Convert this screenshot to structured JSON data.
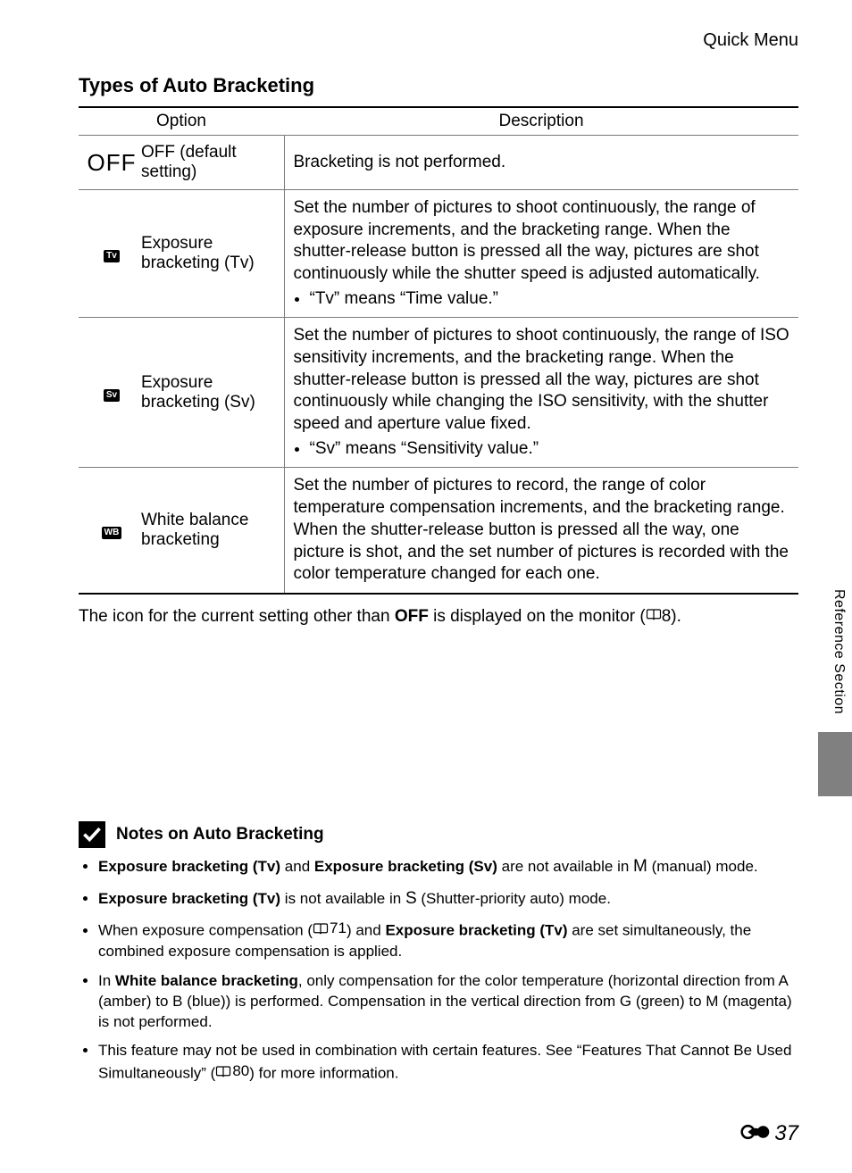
{
  "breadcrumb": "Quick Menu",
  "section_title": "Types of Auto Bracketing",
  "table": {
    "headers": {
      "option": "Option",
      "description": "Description"
    },
    "rows": [
      {
        "icon_type": "off",
        "icon_text": "OFF",
        "name": "OFF (default setting)",
        "desc_main": "Bracketing is not performed.",
        "bullet": ""
      },
      {
        "icon_type": "badge",
        "icon_text": "Tv",
        "name": "Exposure bracketing (Tv)",
        "desc_main": "Set the number of pictures to shoot continuously, the range of exposure increments, and the bracketing range. When the shutter-release button is pressed all the way, pictures are shot continuously while the shutter speed is adjusted automatically.",
        "bullet": "“Tv” means “Time value.”"
      },
      {
        "icon_type": "badge",
        "icon_text": "Sv",
        "name": "Exposure bracketing (Sv)",
        "desc_main": "Set the number of pictures to shoot continuously, the range of ISO sensitivity increments, and the bracketing range. When the shutter-release button is pressed all the way, pictures are shot continuously while changing the ISO sensitivity, with the shutter speed and aperture value fixed.",
        "bullet": "“Sv” means “Sensitivity value.”"
      },
      {
        "icon_type": "badge",
        "icon_text": "WB",
        "name": "White balance bracketing",
        "desc_main": "Set the number of pictures to record, the range of color temperature compensation increments, and the bracketing range.\nWhen the shutter-release button is pressed all the way, one picture is shot, and the set number of pictures is recorded with the color temperature changed for each one.",
        "bullet": ""
      }
    ]
  },
  "below_table": {
    "pre": "The icon for the current setting other than ",
    "bold": "OFF",
    "mid": " is displayed on the monitor (",
    "ref": "8",
    "post": ")."
  },
  "side_tab": "Reference Section",
  "notes": {
    "title": "Notes on Auto Bracketing",
    "items": [
      {
        "segments": [
          {
            "t": "b",
            "v": "Exposure bracketing (Tv)"
          },
          {
            "t": "",
            "v": " and "
          },
          {
            "t": "b",
            "v": "Exposure bracketing (Sv)"
          },
          {
            "t": "",
            "v": " are not available in "
          },
          {
            "t": "M",
            "v": "M"
          },
          {
            "t": "",
            "v": " (manual) mode."
          }
        ]
      },
      {
        "segments": [
          {
            "t": "b",
            "v": "Exposure bracketing (Tv)"
          },
          {
            "t": "",
            "v": " is not available in "
          },
          {
            "t": "S",
            "v": "S"
          },
          {
            "t": "",
            "v": " (Shutter-priority auto) mode."
          }
        ]
      },
      {
        "segments": [
          {
            "t": "",
            "v": "When exposure compensation ("
          },
          {
            "t": "ref",
            "v": "71"
          },
          {
            "t": "",
            "v": ") and "
          },
          {
            "t": "b",
            "v": "Exposure bracketing (Tv)"
          },
          {
            "t": "",
            "v": " are set simultaneously, the combined exposure compensation is applied."
          }
        ]
      },
      {
        "segments": [
          {
            "t": "",
            "v": "In "
          },
          {
            "t": "b",
            "v": "White balance bracketing"
          },
          {
            "t": "",
            "v": ", only compensation for the color temperature (horizontal direction from A (amber) to B (blue)) is performed. Compensation in the vertical direction from G (green) to M (magenta) is not performed."
          }
        ]
      },
      {
        "segments": [
          {
            "t": "",
            "v": "This feature may not be used in combination with certain features. See “Features That Cannot Be Used Simultaneously” ("
          },
          {
            "t": "ref",
            "v": "80"
          },
          {
            "t": "",
            "v": ") for more information."
          }
        ]
      }
    ]
  },
  "footer_page": "37",
  "colors": {
    "text": "#000000",
    "rule": "#7a7a7a",
    "side_block": "#808080",
    "background": "#ffffff"
  },
  "typography": {
    "body_family": "Segoe UI Light",
    "heading_family": "Segoe UI",
    "title_size_pt": 17,
    "body_size_pt": 14,
    "notes_size_pt": 13
  }
}
